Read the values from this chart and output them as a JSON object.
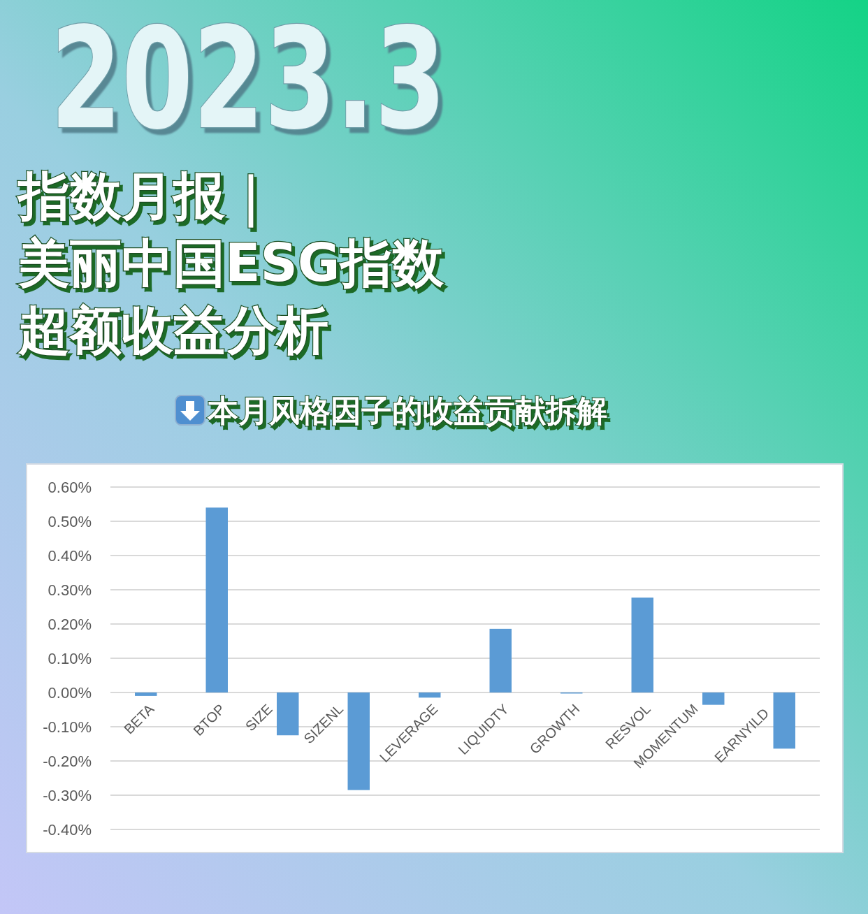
{
  "chart_data": {
    "type": "bar",
    "title": "指数月报｜美丽中国ESG指数超额收益分析",
    "subtitle": "本月风格因子的收益贡献拆解",
    "annotations": [
      "2023.3"
    ],
    "categories": [
      "BETA",
      "BTOP",
      "SIZE",
      "SIZENL",
      "LEVERAGE",
      "LIQUIDTY",
      "GROWTH",
      "RESVOL",
      "MOMENTUM",
      "EARNYILD"
    ],
    "values": [
      -0.01,
      0.54,
      -0.125,
      -0.285,
      -0.015,
      0.186,
      -0.002,
      0.277,
      -0.036,
      -0.164
    ],
    "color": "#5b9bd5",
    "ylim": [
      -0.4,
      0.6
    ],
    "yticks": [
      {
        "value": 0.6,
        "label": "0.60%"
      },
      {
        "value": 0.5,
        "label": "0.50%"
      },
      {
        "value": 0.4,
        "label": "0.40%"
      },
      {
        "value": 0.3,
        "label": "0.30%"
      },
      {
        "value": 0.2,
        "label": "0.20%"
      },
      {
        "value": 0.1,
        "label": "0.10%"
      },
      {
        "value": 0,
        "label": "0.00%"
      },
      {
        "value": -0.1,
        "label": "-0.10%"
      },
      {
        "value": -0.2,
        "label": "-0.20%"
      },
      {
        "value": -0.3,
        "label": "-0.30%"
      },
      {
        "value": -0.4,
        "label": "-0.40%"
      }
    ],
    "grid": "y"
  }
}
